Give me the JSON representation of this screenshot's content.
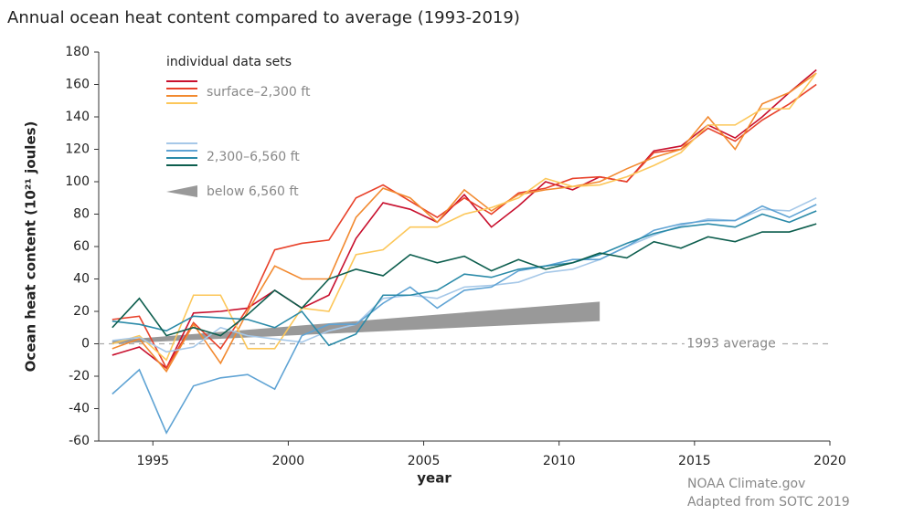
{
  "chart_data": {
    "type": "line",
    "title": "Annual ocean heat content compared to average (1993-2019)",
    "xlabel": "year",
    "ylabel": "Ocean heat content (10²¹ joules)",
    "legend_title": "individual data sets",
    "credits": [
      "NOAA Climate.gov",
      "Adapted from SOTC 2019"
    ],
    "reference": {
      "value": 0,
      "label": "1993 average"
    },
    "xlim": [
      1993,
      2020
    ],
    "xticks": [
      1995,
      2000,
      2005,
      2010,
      2015,
      2020
    ],
    "ylim": [
      -60,
      180
    ],
    "yticks": [
      -60,
      -40,
      -20,
      0,
      20,
      40,
      60,
      80,
      100,
      120,
      140,
      160,
      180
    ],
    "x": [
      1993.5,
      1994.5,
      1995.5,
      1996.5,
      1997.5,
      1998.5,
      1999.5,
      2000.5,
      2001.5,
      2002.5,
      2003.5,
      2004.5,
      2005.5,
      2006.5,
      2007.5,
      2008.5,
      2009.5,
      2010.5,
      2011.5,
      2012.5,
      2013.5,
      2014.5,
      2015.5,
      2016.5,
      2017.5,
      2018.5,
      2019.5
    ],
    "groups": [
      {
        "name": "surface–2,300 ft",
        "series": [
          {
            "color": "#c8102e",
            "values": [
              -7,
              -2,
              -15,
              19,
              20,
              22,
              33,
              22,
              30,
              65,
              87,
              83,
              75,
              92,
              72,
              85,
              100,
              95,
              103,
              100,
              119,
              122,
              135,
              127,
              140,
              155,
              169
            ]
          },
          {
            "color": "#e8412a",
            "values": [
              15,
              17,
              -15,
              13,
              -3,
              22,
              58,
              62,
              64,
              90,
              98,
              88,
              78,
              90,
              80,
              93,
              96,
              102,
              103,
              100,
              118,
              120,
              133,
              125,
              138,
              148,
              160
            ]
          },
          {
            "color": "#f28a30",
            "values": [
              -3,
              3,
              -17,
              12,
              -12,
              20,
              48,
              40,
              40,
              78,
              96,
              90,
              75,
              95,
              82,
              92,
              95,
              97,
              100,
              108,
              115,
              120,
              140,
              120,
              148,
              155,
              167
            ]
          },
          {
            "color": "#fcc75a",
            "values": [
              0,
              5,
              -10,
              30,
              30,
              -3,
              -3,
              22,
              20,
              55,
              58,
              72,
              72,
              80,
              84,
              90,
              102,
              97,
              98,
              103,
              110,
              118,
              135,
              135,
              145,
              145,
              167
            ]
          }
        ]
      },
      {
        "name": "2,300–6,560 ft",
        "series": [
          {
            "color": "#a6c8e8",
            "values": [
              2,
              4,
              -5,
              -2,
              10,
              5,
              3,
              1,
              8,
              12,
              28,
              30,
              28,
              35,
              36,
              38,
              44,
              46,
              52,
              60,
              67,
              73,
              77,
              76,
              83,
              82,
              90
            ]
          },
          {
            "color": "#5fa3d4",
            "values": [
              -31,
              -16,
              -55,
              -26,
              -21,
              -19,
              -28,
              5,
              12,
              12,
              25,
              35,
              22,
              33,
              35,
              45,
              48,
              52,
              52,
              60,
              70,
              74,
              76,
              76,
              85,
              78,
              86
            ]
          },
          {
            "color": "#2a8aa8",
            "values": [
              14,
              12,
              8,
              17,
              16,
              15,
              10,
              20,
              -1,
              6,
              30,
              30,
              33,
              43,
              41,
              46,
              48,
              50,
              55,
              62,
              68,
              72,
              74,
              72,
              80,
              75,
              82
            ]
          },
          {
            "color": "#0d5e4e",
            "values": [
              10,
              28,
              5,
              10,
              5,
              18,
              33,
              22,
              40,
              46,
              42,
              55,
              50,
              54,
              45,
              52,
              46,
              50,
              56,
              53,
              63,
              59,
              66,
              63,
              69,
              69,
              74
            ]
          }
        ]
      },
      {
        "name": "below 6,560 ft",
        "color": "#999999",
        "x": [
          1993.5,
          2011.5
        ],
        "lower": [
          0,
          14
        ],
        "upper": [
          2,
          26
        ]
      }
    ]
  }
}
